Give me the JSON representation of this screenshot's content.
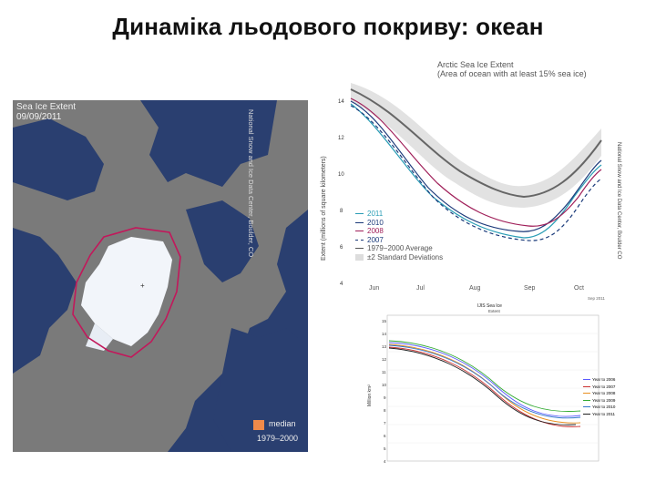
{
  "title": "Динаміка льодового покриву: океан",
  "map": {
    "caption_line1": "Sea Ice Extent",
    "caption_line2": "09/09/2011",
    "credit": "National Snow and Ice Data Center, Boulder, CO",
    "legend_label": "median",
    "legend_years": "1979–2000",
    "median_color": "#f08a4a"
  },
  "chart_top": {
    "title_line1": "Arctic Sea Ice Extent",
    "title_line2": "(Area of ocean with at least 15% sea ice)",
    "ylabel": "Extent (millions of square kilometers)",
    "y_ticks": [
      "14",
      "12",
      "10",
      "8",
      "6",
      "4"
    ],
    "x_ticks": [
      "Jun",
      "Jul",
      "Aug",
      "Sep",
      "Oct"
    ],
    "right_label": "National Snow and Ice Data Center, Boulder CO",
    "legend": [
      {
        "label": "2011",
        "color": "#2a9db5",
        "dash": "solid"
      },
      {
        "label": "2010",
        "color": "#1c3a7a",
        "dash": "solid"
      },
      {
        "label": "2008",
        "color": "#a0205a",
        "dash": "solid"
      },
      {
        "label": "2007",
        "color": "#1a3a7a",
        "dash": "dashed"
      },
      {
        "label": "1979−2000 Average",
        "color": "#555555",
        "dash": "solid"
      },
      {
        "label": "±2 Standard Deviations",
        "color": "#dddddd",
        "dash": "box"
      }
    ]
  },
  "chart_bottom": {
    "title": "IJIS Sea Ice",
    "subtitle": "Extent",
    "note": "Sep 2011",
    "ylabel": "Million km²",
    "y_ticks": [
      "15",
      "14",
      "13",
      "12",
      "11",
      "10",
      "9",
      "8",
      "7",
      "6",
      "5",
      "4",
      "3"
    ],
    "annotation_lines": [
      "",
      "",
      "",
      ""
    ],
    "legend": [
      {
        "label": "Year to 2006",
        "color": "#5a5aff"
      },
      {
        "label": "Year to 2007",
        "color": "#cc3333"
      },
      {
        "label": "Year to 2008",
        "color": "#e89020"
      },
      {
        "label": "Year to 2009",
        "color": "#33aa33"
      },
      {
        "label": "Year to 2010",
        "color": "#3377cc"
      },
      {
        "label": "Year to 2011",
        "color": "#222222"
      }
    ]
  }
}
